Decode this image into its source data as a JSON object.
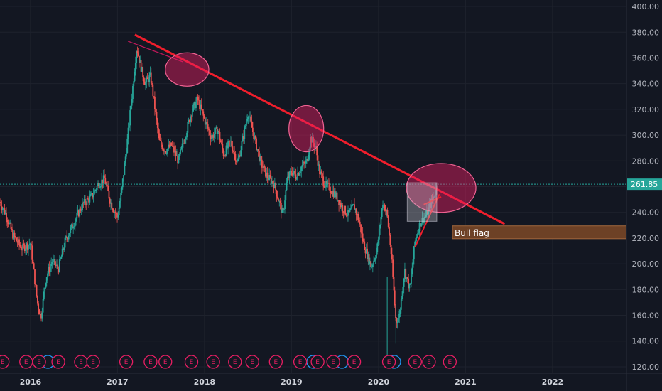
{
  "chart_data": {
    "type": "candlestick",
    "ylim": [
      115,
      405
    ],
    "xlim": [
      2015.65,
      2022.85
    ],
    "y_ticks": [
      "120.00",
      "140.00",
      "160.00",
      "180.00",
      "200.00",
      "220.00",
      "240.00",
      "260.00",
      "280.00",
      "300.00",
      "320.00",
      "340.00",
      "360.00",
      "380.00",
      "400.00"
    ],
    "x_ticks": [
      "2016",
      "2017",
      "2018",
      "2019",
      "2020",
      "2021",
      "2022"
    ],
    "last_price": {
      "label": "261.85",
      "value": 261.85
    },
    "price_path": [
      [
        2015.65,
        248
      ],
      [
        2015.72,
        238
      ],
      [
        2015.8,
        222
      ],
      [
        2015.9,
        212
      ],
      [
        2016.0,
        216
      ],
      [
        2016.08,
        170
      ],
      [
        2016.12,
        158
      ],
      [
        2016.18,
        190
      ],
      [
        2016.25,
        202
      ],
      [
        2016.32,
        196
      ],
      [
        2016.4,
        218
      ],
      [
        2016.5,
        232
      ],
      [
        2016.6,
        246
      ],
      [
        2016.7,
        252
      ],
      [
        2016.78,
        262
      ],
      [
        2016.85,
        266
      ],
      [
        2016.92,
        248
      ],
      [
        2017.0,
        236
      ],
      [
        2017.05,
        258
      ],
      [
        2017.12,
        300
      ],
      [
        2017.18,
        340
      ],
      [
        2017.22,
        368
      ],
      [
        2017.28,
        350
      ],
      [
        2017.32,
        340
      ],
      [
        2017.38,
        346
      ],
      [
        2017.42,
        326
      ],
      [
        2017.48,
        295
      ],
      [
        2017.55,
        288
      ],
      [
        2017.62,
        292
      ],
      [
        2017.7,
        280
      ],
      [
        2017.78,
        300
      ],
      [
        2017.85,
        318
      ],
      [
        2017.92,
        328
      ],
      [
        2018.0,
        312
      ],
      [
        2018.08,
        298
      ],
      [
        2018.15,
        305
      ],
      [
        2018.22,
        285
      ],
      [
        2018.3,
        295
      ],
      [
        2018.38,
        278
      ],
      [
        2018.45,
        300
      ],
      [
        2018.5,
        318
      ],
      [
        2018.58,
        296
      ],
      [
        2018.65,
        278
      ],
      [
        2018.72,
        268
      ],
      [
        2018.8,
        262
      ],
      [
        2018.85,
        250
      ],
      [
        2018.9,
        238
      ],
      [
        2018.95,
        265
      ],
      [
        2019.0,
        272
      ],
      [
        2019.05,
        268
      ],
      [
        2019.12,
        276
      ],
      [
        2019.18,
        280
      ],
      [
        2019.22,
        298
      ],
      [
        2019.28,
        290
      ],
      [
        2019.32,
        272
      ],
      [
        2019.38,
        262
      ],
      [
        2019.45,
        258
      ],
      [
        2019.52,
        252
      ],
      [
        2019.58,
        244
      ],
      [
        2019.65,
        238
      ],
      [
        2019.72,
        245
      ],
      [
        2019.78,
        232
      ],
      [
        2019.82,
        218
      ],
      [
        2019.88,
        205
      ],
      [
        2019.92,
        198
      ],
      [
        2019.98,
        210
      ],
      [
        2020.05,
        248
      ],
      [
        2020.1,
        238
      ],
      [
        2020.15,
        205
      ],
      [
        2020.2,
        155
      ],
      [
        2020.24,
        160
      ],
      [
        2020.3,
        195
      ],
      [
        2020.36,
        180
      ],
      [
        2020.42,
        218
      ],
      [
        2020.48,
        232
      ],
      [
        2020.55,
        238
      ],
      [
        2020.62,
        250
      ],
      [
        2020.68,
        262
      ]
    ],
    "earnings_markers": {
      "label": "E",
      "red_dates": [
        2015.68,
        2015.95,
        2016.1,
        2016.32,
        2016.58,
        2016.72,
        2017.1,
        2017.38,
        2017.55,
        2017.85,
        2018.1,
        2018.35,
        2018.55,
        2018.82,
        2019.1,
        2019.3,
        2019.48,
        2019.72,
        2020.12,
        2020.42,
        2020.58,
        2020.82
      ],
      "blue_dates": [
        2016.2,
        2019.25,
        2019.58,
        2020.18
      ]
    },
    "annotations": [
      {
        "kind": "trendline",
        "color": "#f01e2c",
        "from": [
          2017.2,
          378
        ],
        "to": [
          2021.45,
          231
        ]
      },
      {
        "kind": "trendline",
        "color": "#c2185b",
        "from": [
          2017.12,
          373
        ],
        "to": [
          2017.75,
          357
        ]
      },
      {
        "kind": "ellipse",
        "center": [
          2017.8,
          351
        ],
        "radii_data": [
          0.25,
          13
        ]
      },
      {
        "kind": "ellipse",
        "center": [
          2019.17,
          305
        ],
        "radii_data": [
          0.2,
          18
        ]
      },
      {
        "kind": "ellipse",
        "center": [
          2020.72,
          259
        ],
        "radii_data": [
          0.4,
          19
        ]
      },
      {
        "kind": "pattern_line",
        "color": "#f01e2c",
        "from": [
          2020.42,
          213
        ],
        "to": [
          2020.7,
          254
        ]
      },
      {
        "kind": "pattern_line",
        "color": "#f01e2c",
        "from": [
          2020.52,
          246
        ],
        "to": [
          2020.72,
          252
        ]
      },
      {
        "kind": "rect",
        "x": [
          2020.33,
          2020.67
        ],
        "y": [
          233,
          263
        ]
      },
      {
        "kind": "zone",
        "label": "Bull flag",
        "x_from": 2020.85,
        "y_low": 219.5,
        "y_high": 229.5
      }
    ]
  }
}
